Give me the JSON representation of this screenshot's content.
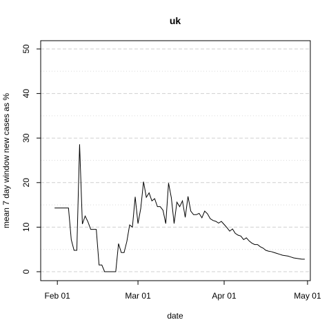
{
  "chart_data": {
    "type": "line",
    "title": "uk",
    "xlabel": "date",
    "ylabel": "mean  7  day window new cases as %",
    "x_ticks": [
      "Feb 01",
      "Mar 01",
      "Apr 01",
      "May 01"
    ],
    "y_ticks": [
      0,
      10,
      20,
      30,
      40,
      50
    ],
    "ylim": [
      0,
      50
    ],
    "xlim": [
      "2020-01-26",
      "2020-05-02"
    ],
    "grid": "horizontal dashed at each y tick",
    "color": "#000000",
    "series": [
      {
        "x": [
          "2020-01-31",
          "2020-02-01",
          "2020-02-02",
          "2020-02-03",
          "2020-02-04",
          "2020-02-05",
          "2020-02-06",
          "2020-02-07",
          "2020-02-08",
          "2020-02-09",
          "2020-02-10",
          "2020-02-11",
          "2020-02-12",
          "2020-02-13",
          "2020-02-14",
          "2020-02-15",
          "2020-02-16",
          "2020-02-17",
          "2020-02-18",
          "2020-02-19",
          "2020-02-20",
          "2020-02-21",
          "2020-02-22",
          "2020-02-23",
          "2020-02-24",
          "2020-02-25",
          "2020-02-26",
          "2020-02-27",
          "2020-02-28",
          "2020-02-29",
          "2020-03-01",
          "2020-03-02",
          "2020-03-03",
          "2020-03-04",
          "2020-03-05",
          "2020-03-06",
          "2020-03-07",
          "2020-03-08",
          "2020-03-09",
          "2020-03-10",
          "2020-03-11",
          "2020-03-12",
          "2020-03-13",
          "2020-03-14",
          "2020-03-15",
          "2020-03-16",
          "2020-03-17",
          "2020-03-18",
          "2020-03-19",
          "2020-03-20",
          "2020-03-21",
          "2020-03-22",
          "2020-03-23",
          "2020-03-24",
          "2020-03-25",
          "2020-03-26",
          "2020-03-27",
          "2020-03-28",
          "2020-03-29",
          "2020-03-30",
          "2020-03-31",
          "2020-04-01",
          "2020-04-02",
          "2020-04-03",
          "2020-04-04",
          "2020-04-05",
          "2020-04-06",
          "2020-04-07",
          "2020-04-08",
          "2020-04-09",
          "2020-04-10",
          "2020-04-11",
          "2020-04-12",
          "2020-04-13",
          "2020-04-14",
          "2020-04-15",
          "2020-04-16",
          "2020-04-17",
          "2020-04-18",
          "2020-04-19",
          "2020-04-20",
          "2020-04-21",
          "2020-04-22",
          "2020-04-23",
          "2020-04-24",
          "2020-04-25",
          "2020-04-26",
          "2020-04-27",
          "2020-04-28",
          "2020-04-29",
          "2020-04-30"
        ],
        "values": [
          14.3,
          14.3,
          14.3,
          14.3,
          14.3,
          14.3,
          7.2,
          4.8,
          4.8,
          28.6,
          10.7,
          12.5,
          11.2,
          9.5,
          9.5,
          9.5,
          1.5,
          1.5,
          0.0,
          0.0,
          0.0,
          0.0,
          0.0,
          6.3,
          4.3,
          4.3,
          6.8,
          10.5,
          10.0,
          16.8,
          10.8,
          14.2,
          20.2,
          16.7,
          17.7,
          15.9,
          16.4,
          14.6,
          14.6,
          13.8,
          10.8,
          19.9,
          16.6,
          10.8,
          15.6,
          14.6,
          15.9,
          12.2,
          16.9,
          13.6,
          12.8,
          12.8,
          13.1,
          12.1,
          13.6,
          13.0,
          11.9,
          11.5,
          11.3,
          10.9,
          11.3,
          10.6,
          9.9,
          9.1,
          9.6,
          8.6,
          8.2,
          8.0,
          7.2,
          7.6,
          6.9,
          6.4,
          6.1,
          6.1,
          5.6,
          5.3,
          4.8,
          4.6,
          4.5,
          4.3,
          4.1,
          3.9,
          3.7,
          3.6,
          3.5,
          3.3,
          3.1,
          3.0,
          2.9,
          2.8,
          2.8
        ]
      }
    ]
  }
}
